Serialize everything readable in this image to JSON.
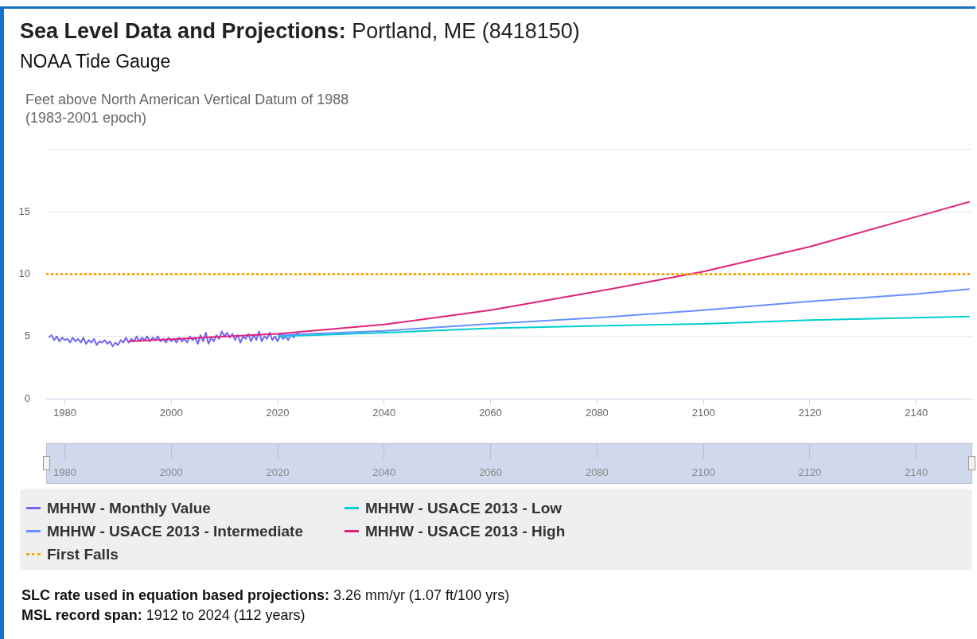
{
  "chart_data": {
    "type": "line",
    "title": "Sea Level Data and Projections: Portland, ME (8418150)",
    "subtitle": "NOAA Tide Gauge",
    "ylabel": "Feet above North American Vertical Datum of 1988\n(1983-2001 epoch)",
    "xlim": [
      1976.5,
      2150.5
    ],
    "xticks": [
      1980,
      2000,
      2020,
      2040,
      2060,
      2080,
      2100,
      2120,
      2140
    ],
    "x2lim": [
      1976.5,
      2150.5
    ],
    "x2ticks": [
      1980,
      2000,
      2020,
      2040,
      2060,
      2080,
      2100,
      2120,
      2140
    ],
    "ylim": [
      0,
      20
    ],
    "yticks": [
      0,
      5,
      10,
      15,
      {
        "value": 20,
        "label": null
      }
    ],
    "grid": "y",
    "legend": "bottom",
    "series": [
      {
        "name": "MHHW - Monthly Value",
        "color": "#7366f0",
        "x": [
          1977,
          1977.5,
          1978,
          1978.5,
          1979,
          1979.5,
          1980,
          1980.5,
          1981,
          1981.5,
          1982,
          1982.5,
          1983,
          1983.5,
          1984,
          1984.5,
          1985,
          1985.5,
          1986,
          1986.5,
          1987,
          1987.5,
          1988,
          1988.5,
          1989,
          1989.5,
          1990,
          1990.5,
          1991,
          1991.5,
          1992,
          1992.5,
          1993,
          1993.5,
          1994,
          1994.5,
          1995,
          1995.5,
          1996,
          1996.5,
          1997,
          1997.5,
          1998,
          1998.5,
          1999,
          1999.5,
          2000,
          2000.5,
          2001,
          2001.5,
          2002,
          2002.5,
          2003,
          2003.5,
          2004,
          2004.5,
          2005,
          2005.5,
          2006,
          2006.5,
          2007,
          2007.5,
          2008,
          2008.5,
          2009,
          2009.5,
          2010,
          2010.5,
          2011,
          2011.5,
          2012,
          2012.5,
          2013,
          2013.5,
          2014,
          2014.5,
          2015,
          2015.5,
          2016,
          2016.5,
          2017,
          2017.5,
          2018,
          2018.5,
          2019,
          2019.5,
          2020,
          2020.5,
          2021,
          2021.5,
          2022,
          2022.5,
          2023,
          2023.5,
          2024
        ],
        "values": [
          4.9,
          5.1,
          4.7,
          5.0,
          4.6,
          4.9,
          4.7,
          4.8,
          4.5,
          4.9,
          4.6,
          4.8,
          4.5,
          4.9,
          4.4,
          4.7,
          4.5,
          4.8,
          4.3,
          4.6,
          4.5,
          4.7,
          4.4,
          4.6,
          4.2,
          4.5,
          4.3,
          4.7,
          4.5,
          4.9,
          4.5,
          4.8,
          4.6,
          5.0,
          4.6,
          4.9,
          4.7,
          5.0,
          4.6,
          4.9,
          4.7,
          5.0,
          4.6,
          4.8,
          4.5,
          4.9,
          4.6,
          4.8,
          4.5,
          4.9,
          4.6,
          4.8,
          4.5,
          5.0,
          4.7,
          4.9,
          4.4,
          5.1,
          4.6,
          5.3,
          4.4,
          4.9,
          4.6,
          5.1,
          4.8,
          5.4,
          5.0,
          5.3,
          4.9,
          5.2,
          4.7,
          5.1,
          4.5,
          5.0,
          4.8,
          5.2,
          4.6,
          5.1,
          4.7,
          5.4,
          4.6,
          5.0,
          4.8,
          5.3,
          4.7,
          5.0,
          4.6,
          5.1,
          4.8,
          5.0,
          4.7,
          5.1,
          4.9,
          5.2,
          5.3
        ]
      },
      {
        "name": "MHHW - USACE 2013 - Low",
        "color": "#00cfd0",
        "x": [
          2020,
          2040,
          2060,
          2080,
          2100,
          2120,
          2140,
          2150
        ],
        "values": [
          5.0,
          5.3,
          5.65,
          5.85,
          6.0,
          6.3,
          6.5,
          6.6
        ]
      },
      {
        "name": "MHHW - USACE 2013 - Intermediate",
        "color": "#6691ff",
        "x": [
          2020,
          2040,
          2060,
          2080,
          2100,
          2120,
          2140,
          2150
        ],
        "values": [
          5.1,
          5.45,
          6.0,
          6.5,
          7.1,
          7.8,
          8.4,
          8.8
        ]
      },
      {
        "name": "MHHW - USACE 2013 - High",
        "color": "#e0217a",
        "x": [
          1992,
          2020,
          2040,
          2060,
          2080,
          2100,
          2120,
          2140,
          2150
        ],
        "values": [
          4.6,
          5.2,
          5.95,
          7.1,
          8.6,
          10.2,
          12.2,
          14.6,
          15.8
        ]
      }
    ],
    "ref_lines": [
      {
        "axis": "y",
        "value": 10,
        "label": "First Falls",
        "color": "#ffa500",
        "line_style": "dotted"
      }
    ],
    "annotations": [
      "SLC rate used in equation based projections: 3.26 mm/yr (1.07 ft/100 yrs)",
      "MSL record span: 1912 to 2024 (112 years)"
    ]
  }
}
